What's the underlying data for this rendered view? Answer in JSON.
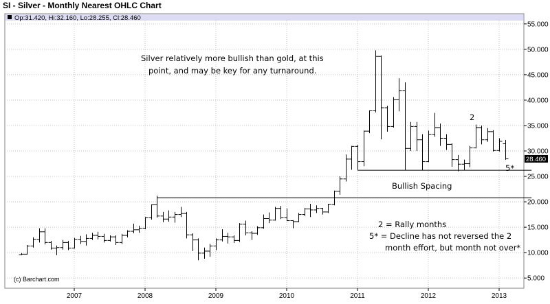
{
  "title": "SI - Silver - Monthly Nearest OHLC Chart",
  "chart_data": {
    "type": "ohlc",
    "legend": "Op:31.420, Hi:32.160, Lo:28.255, Cl:28.460",
    "last_price_label": "28.460",
    "last_price": 28.46,
    "watermark": "(c) Barchart.com",
    "y_ticks": [
      "5.000",
      "10.000",
      "15.000",
      "20.000",
      "25.000",
      "30.000",
      "35.000",
      "40.000",
      "45.000",
      "50.000",
      "55.000"
    ],
    "y_tick_values": [
      5,
      10,
      15,
      20,
      25,
      30,
      35,
      40,
      45,
      50,
      55
    ],
    "x_ticks": [
      "2007",
      "2008",
      "2009",
      "2010",
      "2011",
      "2012",
      "2013"
    ],
    "ylim": [
      3,
      57
    ],
    "grid": true,
    "colors": {
      "accent_band": "#dcdcf4",
      "bars": "#000000",
      "grid": "#c0c0c0"
    },
    "annotations": [
      "Silver relatively more bullish than gold, at this",
      "point, and may be key for any turnaround.",
      "Bullish Spacing",
      "2 = Rally months",
      "5* = Decline has not reversed the 2",
      "month effort, but month not over*",
      "2",
      "5*"
    ],
    "reference_lines": [
      {
        "from": "2008-03",
        "to": "2013-03",
        "value": 20.8
      },
      {
        "from": "2011-01",
        "to": "2013-03",
        "value": 26.2
      }
    ],
    "series": [
      {
        "bars": [
          {
            "d": "2006-04",
            "o": 9.6,
            "h": 9.9,
            "l": 9.5,
            "c": 9.7
          },
          {
            "d": "2006-05",
            "o": 9.7,
            "h": 11.5,
            "l": 9.6,
            "c": 11.3
          },
          {
            "d": "2006-06",
            "o": 11.3,
            "h": 13.0,
            "l": 11.0,
            "c": 12.6
          },
          {
            "d": "2006-07",
            "o": 12.6,
            "h": 14.8,
            "l": 12.0,
            "c": 14.1
          },
          {
            "d": "2006-08",
            "o": 14.1,
            "h": 14.8,
            "l": 11.6,
            "c": 12.0
          },
          {
            "d": "2006-09",
            "o": 12.0,
            "h": 12.3,
            "l": 10.6,
            "c": 10.9
          },
          {
            "d": "2006-10",
            "o": 10.9,
            "h": 11.4,
            "l": 9.5,
            "c": 11.0
          },
          {
            "d": "2006-11",
            "o": 11.0,
            "h": 12.5,
            "l": 10.6,
            "c": 12.0
          },
          {
            "d": "2006-12",
            "o": 12.0,
            "h": 12.3,
            "l": 10.5,
            "c": 10.9
          },
          {
            "d": "2007-01",
            "o": 10.9,
            "h": 12.9,
            "l": 10.8,
            "c": 12.6
          },
          {
            "d": "2007-02",
            "o": 12.6,
            "h": 13.3,
            "l": 11.7,
            "c": 12.2
          },
          {
            "d": "2007-03",
            "o": 12.2,
            "h": 13.6,
            "l": 11.4,
            "c": 12.8
          },
          {
            "d": "2007-04",
            "o": 12.8,
            "h": 13.9,
            "l": 12.5,
            "c": 13.4
          },
          {
            "d": "2007-05",
            "o": 13.4,
            "h": 14.1,
            "l": 12.6,
            "c": 13.2
          },
          {
            "d": "2007-06",
            "o": 13.2,
            "h": 13.7,
            "l": 12.0,
            "c": 12.4
          },
          {
            "d": "2007-07",
            "o": 12.4,
            "h": 13.4,
            "l": 12.2,
            "c": 13.1
          },
          {
            "d": "2007-08",
            "o": 13.1,
            "h": 13.4,
            "l": 11.5,
            "c": 12.0
          },
          {
            "d": "2007-09",
            "o": 12.0,
            "h": 13.7,
            "l": 11.7,
            "c": 13.4
          },
          {
            "d": "2007-10",
            "o": 13.4,
            "h": 14.4,
            "l": 13.0,
            "c": 14.2
          },
          {
            "d": "2007-11",
            "o": 14.2,
            "h": 15.7,
            "l": 13.8,
            "c": 14.5
          },
          {
            "d": "2007-12",
            "o": 14.5,
            "h": 15.3,
            "l": 13.9,
            "c": 14.8
          },
          {
            "d": "2008-01",
            "o": 14.8,
            "h": 17.0,
            "l": 14.6,
            "c": 16.9
          },
          {
            "d": "2008-02",
            "o": 16.9,
            "h": 19.5,
            "l": 16.5,
            "c": 19.4
          },
          {
            "d": "2008-03",
            "o": 19.4,
            "h": 21.2,
            "l": 16.9,
            "c": 17.2
          },
          {
            "d": "2008-04",
            "o": 17.2,
            "h": 18.0,
            "l": 16.0,
            "c": 16.6
          },
          {
            "d": "2008-05",
            "o": 16.6,
            "h": 18.3,
            "l": 16.1,
            "c": 17.0
          },
          {
            "d": "2008-06",
            "o": 17.0,
            "h": 18.0,
            "l": 15.9,
            "c": 17.5
          },
          {
            "d": "2008-07",
            "o": 17.5,
            "h": 19.0,
            "l": 17.0,
            "c": 17.7
          },
          {
            "d": "2008-08",
            "o": 17.7,
            "h": 18.0,
            "l": 12.8,
            "c": 13.5
          },
          {
            "d": "2008-09",
            "o": 13.5,
            "h": 13.8,
            "l": 10.3,
            "c": 12.5
          },
          {
            "d": "2008-10",
            "o": 12.5,
            "h": 12.8,
            "l": 8.5,
            "c": 9.9
          },
          {
            "d": "2008-11",
            "o": 9.9,
            "h": 11.0,
            "l": 8.8,
            "c": 10.3
          },
          {
            "d": "2008-12",
            "o": 10.3,
            "h": 11.7,
            "l": 9.2,
            "c": 11.3
          },
          {
            "d": "2009-01",
            "o": 11.3,
            "h": 12.8,
            "l": 10.5,
            "c": 12.5
          },
          {
            "d": "2009-02",
            "o": 12.5,
            "h": 14.6,
            "l": 12.2,
            "c": 13.2
          },
          {
            "d": "2009-03",
            "o": 13.2,
            "h": 13.9,
            "l": 11.8,
            "c": 13.1
          },
          {
            "d": "2009-04",
            "o": 13.1,
            "h": 13.4,
            "l": 11.9,
            "c": 12.4
          },
          {
            "d": "2009-05",
            "o": 12.4,
            "h": 15.8,
            "l": 12.1,
            "c": 15.6
          },
          {
            "d": "2009-06",
            "o": 15.6,
            "h": 16.3,
            "l": 13.4,
            "c": 13.9
          },
          {
            "d": "2009-07",
            "o": 13.9,
            "h": 14.2,
            "l": 12.5,
            "c": 13.8
          },
          {
            "d": "2009-08",
            "o": 13.8,
            "h": 15.2,
            "l": 13.5,
            "c": 14.9
          },
          {
            "d": "2009-09",
            "o": 14.9,
            "h": 17.5,
            "l": 14.7,
            "c": 16.7
          },
          {
            "d": "2009-10",
            "o": 16.7,
            "h": 17.9,
            "l": 15.8,
            "c": 16.4
          },
          {
            "d": "2009-11",
            "o": 16.4,
            "h": 19.0,
            "l": 16.3,
            "c": 18.7
          },
          {
            "d": "2009-12",
            "o": 18.7,
            "h": 19.2,
            "l": 16.6,
            "c": 16.9
          },
          {
            "d": "2010-01",
            "o": 16.9,
            "h": 18.7,
            "l": 16.2,
            "c": 16.3
          },
          {
            "d": "2010-02",
            "o": 16.3,
            "h": 16.4,
            "l": 14.8,
            "c": 16.1
          },
          {
            "d": "2010-03",
            "o": 16.1,
            "h": 17.8,
            "l": 16.0,
            "c": 17.5
          },
          {
            "d": "2010-04",
            "o": 17.5,
            "h": 18.8,
            "l": 17.2,
            "c": 18.6
          },
          {
            "d": "2010-05",
            "o": 18.6,
            "h": 19.6,
            "l": 17.0,
            "c": 18.4
          },
          {
            "d": "2010-06",
            "o": 18.4,
            "h": 19.3,
            "l": 17.8,
            "c": 18.7
          },
          {
            "d": "2010-07",
            "o": 18.7,
            "h": 18.8,
            "l": 17.5,
            "c": 18.0
          },
          {
            "d": "2010-08",
            "o": 18.0,
            "h": 19.6,
            "l": 17.8,
            "c": 19.5
          },
          {
            "d": "2010-09",
            "o": 19.5,
            "h": 22.2,
            "l": 19.3,
            "c": 22.1
          },
          {
            "d": "2010-10",
            "o": 22.1,
            "h": 25.0,
            "l": 21.4,
            "c": 24.5
          },
          {
            "d": "2010-11",
            "o": 24.5,
            "h": 29.3,
            "l": 24.0,
            "c": 28.4
          },
          {
            "d": "2010-12",
            "o": 28.4,
            "h": 31.0,
            "l": 26.3,
            "c": 30.9
          },
          {
            "d": "2011-01",
            "o": 30.9,
            "h": 31.2,
            "l": 26.3,
            "c": 27.9
          },
          {
            "d": "2011-02",
            "o": 27.9,
            "h": 34.0,
            "l": 27.0,
            "c": 33.9
          },
          {
            "d": "2011-03",
            "o": 33.9,
            "h": 38.0,
            "l": 33.5,
            "c": 37.9
          },
          {
            "d": "2011-04",
            "o": 37.9,
            "h": 49.8,
            "l": 37.6,
            "c": 48.6
          },
          {
            "d": "2011-05",
            "o": 48.6,
            "h": 48.8,
            "l": 32.3,
            "c": 38.5
          },
          {
            "d": "2011-06",
            "o": 38.5,
            "h": 38.9,
            "l": 33.8,
            "c": 34.8
          },
          {
            "d": "2011-07",
            "o": 34.8,
            "h": 40.6,
            "l": 34.6,
            "c": 40.1
          },
          {
            "d": "2011-08",
            "o": 40.1,
            "h": 44.3,
            "l": 37.8,
            "c": 41.9
          },
          {
            "d": "2011-09",
            "o": 41.9,
            "h": 43.5,
            "l": 26.2,
            "c": 30.5
          },
          {
            "d": "2011-10",
            "o": 30.5,
            "h": 35.7,
            "l": 30.0,
            "c": 34.8
          },
          {
            "d": "2011-11",
            "o": 34.8,
            "h": 35.7,
            "l": 30.0,
            "c": 32.2
          },
          {
            "d": "2011-12",
            "o": 32.2,
            "h": 33.3,
            "l": 26.2,
            "c": 27.9
          },
          {
            "d": "2012-01",
            "o": 27.9,
            "h": 34.0,
            "l": 27.8,
            "c": 33.3
          },
          {
            "d": "2012-02",
            "o": 33.3,
            "h": 37.5,
            "l": 32.8,
            "c": 34.6
          },
          {
            "d": "2012-03",
            "o": 34.6,
            "h": 35.4,
            "l": 31.0,
            "c": 32.5
          },
          {
            "d": "2012-04",
            "o": 32.5,
            "h": 33.3,
            "l": 30.2,
            "c": 31.3
          },
          {
            "d": "2012-05",
            "o": 31.3,
            "h": 31.5,
            "l": 26.9,
            "c": 28.3
          },
          {
            "d": "2012-06",
            "o": 28.3,
            "h": 29.2,
            "l": 26.0,
            "c": 27.4
          },
          {
            "d": "2012-07",
            "o": 27.4,
            "h": 28.3,
            "l": 26.2,
            "c": 27.5
          },
          {
            "d": "2012-08",
            "o": 27.5,
            "h": 31.0,
            "l": 26.8,
            "c": 30.6
          },
          {
            "d": "2012-09",
            "o": 30.6,
            "h": 35.2,
            "l": 30.5,
            "c": 34.6
          },
          {
            "d": "2012-10",
            "o": 34.6,
            "h": 35.0,
            "l": 31.3,
            "c": 32.2
          },
          {
            "d": "2012-11",
            "o": 32.2,
            "h": 34.5,
            "l": 31.8,
            "c": 33.8
          },
          {
            "d": "2012-12",
            "o": 33.8,
            "h": 34.1,
            "l": 29.9,
            "c": 30.1
          },
          {
            "d": "2013-01",
            "o": 30.1,
            "h": 32.5,
            "l": 29.9,
            "c": 31.9
          },
          {
            "d": "2013-02",
            "o": 31.42,
            "h": 32.16,
            "l": 28.255,
            "c": 28.46
          }
        ]
      }
    ]
  }
}
